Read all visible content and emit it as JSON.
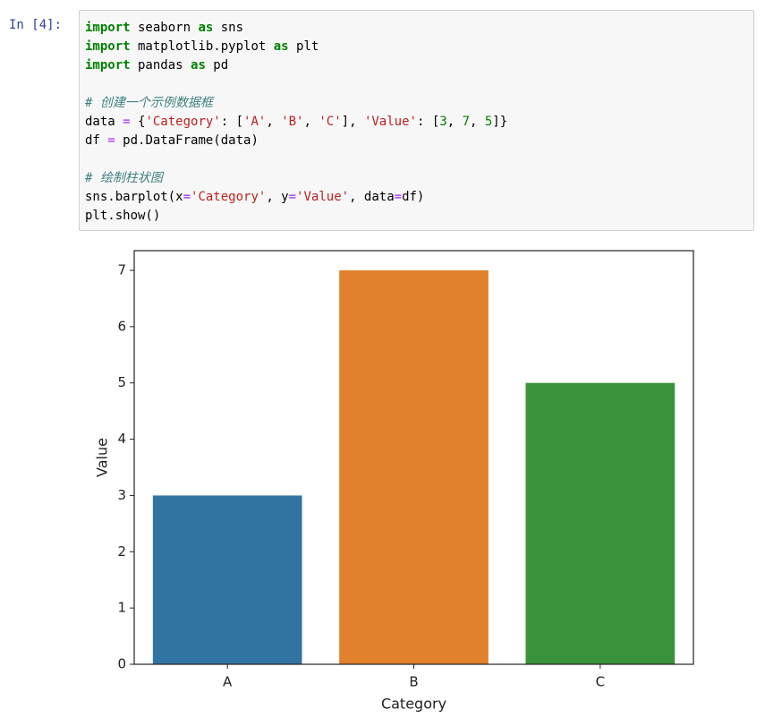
{
  "cell": {
    "prompt": "In  [4]:",
    "code_blocks": [
      [
        "import seaborn as sns",
        "import matplotlib.pyplot as plt",
        "import pandas as pd"
      ],
      [
        "# 创建一个示例数据框",
        "data = {'Category': ['A', 'B', 'C'], 'Value': [3, 7, 5]}",
        "df = pd.DataFrame(data)"
      ],
      [
        "# 绘制柱状图",
        "sns.barplot(x='Category', y='Value', data=df)",
        "plt.show()"
      ]
    ]
  },
  "chart_data": {
    "type": "bar",
    "x_label": "Category",
    "y_label": "Value",
    "categories": [
      "A",
      "B",
      "C"
    ],
    "values": [
      3,
      7,
      5
    ],
    "colors": [
      "#3274a1",
      "#e1812c",
      "#3a923a"
    ],
    "ylim": [
      0,
      7.35
    ],
    "yticks": [
      0,
      1,
      2,
      3,
      4,
      5,
      6,
      7
    ]
  }
}
